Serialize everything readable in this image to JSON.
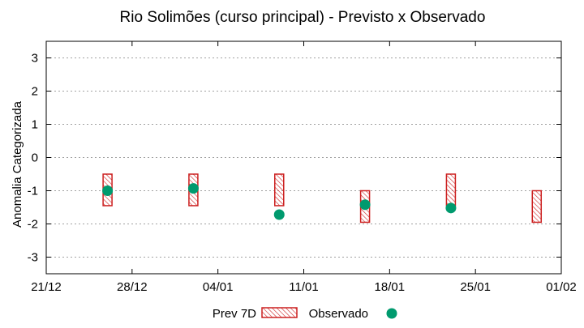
{
  "chart_data": {
    "type": "range-bar-scatter",
    "title": "Rio Solimões (curso principal) - Previsto x Observado",
    "ylabel": "Anomalia Categorizada",
    "xlabel": "",
    "ylim": [
      -3.5,
      3.5
    ],
    "x_range_days": [
      0,
      42
    ],
    "yticks": [
      3,
      2,
      1,
      0,
      -1,
      -2,
      -3
    ],
    "ytick_labels": [
      "3",
      "2",
      "1",
      "0",
      "-1",
      "-2",
      "-3"
    ],
    "xticks": [
      {
        "day": 0,
        "label": "21/12"
      },
      {
        "day": 7,
        "label": "28/12"
      },
      {
        "day": 14,
        "label": "04/01"
      },
      {
        "day": 21,
        "label": "11/01"
      },
      {
        "day": 28,
        "label": "18/01"
      },
      {
        "day": 35,
        "label": "25/01"
      },
      {
        "day": 42,
        "label": "01/02"
      }
    ],
    "grid": true,
    "series": [
      {
        "name": "Prev 7D",
        "kind": "range",
        "color": "#cc2020",
        "points": [
          {
            "day": 5,
            "low": -1.45,
            "high": -0.5
          },
          {
            "day": 12,
            "low": -1.45,
            "high": -0.5
          },
          {
            "day": 19,
            "low": -1.45,
            "high": -0.5
          },
          {
            "day": 26,
            "low": -1.95,
            "high": -1.0
          },
          {
            "day": 33,
            "low": -1.45,
            "high": -0.5
          },
          {
            "day": 40,
            "low": -1.95,
            "high": -1.0
          }
        ]
      },
      {
        "name": "Observado",
        "kind": "scatter",
        "color": "#009a6e",
        "points": [
          {
            "day": 5,
            "value": -1.0
          },
          {
            "day": 12,
            "value": -0.93
          },
          {
            "day": 19,
            "value": -1.72
          },
          {
            "day": 26,
            "value": -1.42
          },
          {
            "day": 33,
            "value": -1.52
          }
        ]
      }
    ],
    "legend": {
      "position": "bottom-center",
      "labels": [
        "Prev 7D",
        "Observado"
      ]
    }
  }
}
